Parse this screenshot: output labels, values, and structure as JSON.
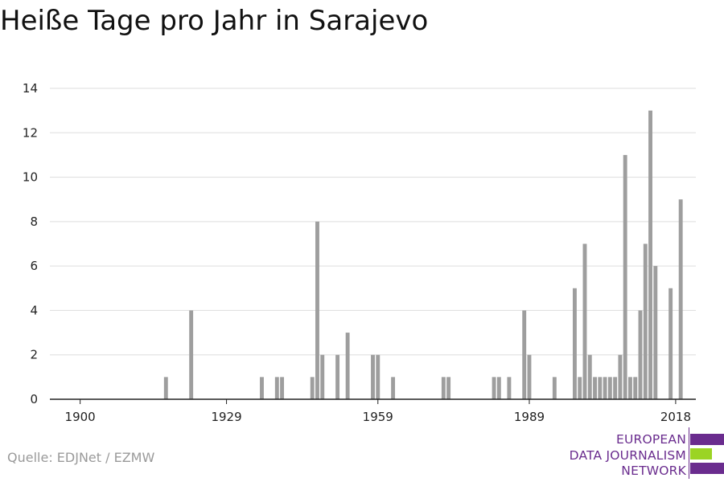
{
  "title": "Heiße Tage pro Jahr in Sarajevo",
  "source": "Quelle: EDJNet / EZMW",
  "logo": {
    "lines": [
      "EUROPEAN",
      "DATA JOURNALISM",
      "NETWORK"
    ],
    "colors": {
      "purple": "#6a2c8e",
      "green": "#9bd424"
    }
  },
  "colors": {
    "bar": "#9e9e9e",
    "grid": "#dddddd",
    "axis": "#222222"
  },
  "chart_data": {
    "type": "bar",
    "title": "Heiße Tage pro Jahr in Sarajevo",
    "xlabel": "",
    "ylabel": "",
    "xlim": [
      1894,
      2022
    ],
    "ylim": [
      0,
      14
    ],
    "x_ticks": [
      1900,
      1929,
      1959,
      1989,
      2018
    ],
    "y_ticks": [
      0,
      2,
      4,
      6,
      8,
      10,
      12,
      14
    ],
    "grid": true,
    "x": [
      1917,
      1922,
      1936,
      1939,
      1940,
      1946,
      1947,
      1948,
      1951,
      1953,
      1958,
      1959,
      1962,
      1972,
      1973,
      1982,
      1983,
      1985,
      1988,
      1989,
      1994,
      1998,
      1999,
      2000,
      2001,
      2002,
      2003,
      2004,
      2005,
      2006,
      2007,
      2008,
      2009,
      2010,
      2011,
      2012,
      2013,
      2014,
      2015,
      2017,
      2019
    ],
    "values": [
      1,
      4,
      1,
      1,
      1,
      1,
      8,
      2,
      2,
      3,
      2,
      2,
      1,
      1,
      1,
      1,
      1,
      1,
      4,
      2,
      1,
      5,
      1,
      7,
      2,
      1,
      1,
      1,
      1,
      1,
      2,
      11,
      1,
      1,
      4,
      7,
      13,
      6,
      0,
      5,
      9
    ]
  }
}
